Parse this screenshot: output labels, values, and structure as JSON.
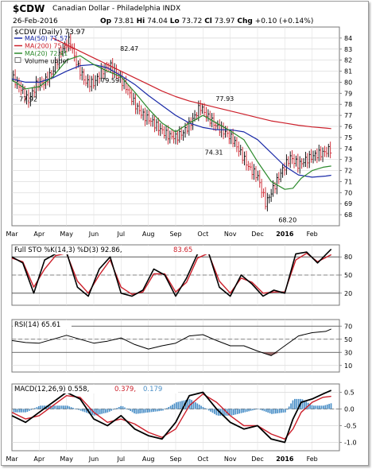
{
  "header": {
    "symbol": "$CDW",
    "name": "Canadian Dollar - Philadelphia",
    "exchange": "INDX",
    "date": "26-Feb-2016",
    "open_label": "Op",
    "open": "73.81",
    "high_label": "Hi",
    "high": "74.04",
    "low_label": "Lo",
    "low": "73.72",
    "close_label": "Cl",
    "close": "73.97",
    "change_label": "Chg",
    "change": "+0.10 (+0.14%)"
  },
  "colors": {
    "ma50": "#1a2aa8",
    "ma200": "#cc1f2a",
    "ma20": "#2c8a2c",
    "price": "#000000",
    "down_bar": "#cc1f2a",
    "sto_k": "#000000",
    "sto_d": "#cc1f2a",
    "macd": "#000000",
    "signal": "#cc1f2a",
    "histogram": "#4a8fc7",
    "rsi_fill": "#9b6b6b"
  },
  "chart_data": [
    {
      "type": "line",
      "title": "$CDW (Daily) 73.97",
      "legend": [
        {
          "label": "MA(50) 71.57",
          "color": "#1a2aa8"
        },
        {
          "label": "MA(200) 75.80",
          "color": "#cc1f2a"
        },
        {
          "label": "MA(20) 72.41",
          "color": "#2c8a2c"
        },
        {
          "label": "Volume undef",
          "color": "#000000"
        }
      ],
      "legend_position": "top-left",
      "x_ticks": [
        "Mar",
        "Apr",
        "May",
        "Jun",
        "Jul",
        "Aug",
        "Sep",
        "Oct",
        "Nov",
        "Dec",
        "2016",
        "Feb"
      ],
      "ylim": [
        67,
        85
      ],
      "y_ticks": [
        68,
        69,
        70,
        71,
        72,
        73,
        74,
        75,
        76,
        77,
        78,
        79,
        80,
        81,
        82,
        83,
        84
      ],
      "annotations": [
        {
          "text": "82.47",
          "x": 4.3,
          "y": 82.47
        },
        {
          "text": "77.92",
          "x": 0.6,
          "y": 77.92
        },
        {
          "text": "79.59",
          "x": 3.6,
          "y": 79.59
        },
        {
          "text": "77.93",
          "x": 7.8,
          "y": 77.93
        },
        {
          "text": "74.31",
          "x": 7.4,
          "y": 74.31
        },
        {
          "text": "68.20",
          "x": 10.1,
          "y": 68.2
        }
      ],
      "series": [
        {
          "name": "$CDW",
          "x": [
            0,
            0.3,
            0.6,
            0.9,
            1.2,
            1.5,
            1.8,
            2.1,
            2.4,
            2.7,
            3.0,
            3.3,
            3.6,
            3.9,
            4.2,
            4.5,
            4.8,
            5.1,
            5.4,
            5.7,
            6.0,
            6.3,
            6.6,
            6.9,
            7.2,
            7.5,
            7.8,
            8.1,
            8.4,
            8.7,
            9.0,
            9.3,
            9.6,
            9.9,
            10.2,
            10.5,
            10.8,
            11.1,
            11.4,
            11.7
          ],
          "values": [
            80.5,
            79.5,
            78.3,
            79.8,
            80.0,
            81.0,
            82.8,
            83.8,
            81.5,
            80.0,
            79.9,
            81.0,
            81.5,
            80.5,
            79.5,
            78.0,
            77.0,
            76.5,
            75.8,
            75.2,
            75.0,
            75.5,
            76.5,
            77.8,
            76.8,
            76.0,
            75.5,
            74.8,
            73.5,
            72.2,
            71.5,
            69.0,
            70.5,
            72.0,
            73.2,
            72.5,
            73.0,
            73.4,
            73.6,
            73.97
          ]
        },
        {
          "name": "MA(50)",
          "x": [
            0,
            0.5,
            1.0,
            1.5,
            2.0,
            2.5,
            3.0,
            3.5,
            4.0,
            4.5,
            5.0,
            5.5,
            6.0,
            6.5,
            7.0,
            7.5,
            8.0,
            8.5,
            9.0,
            9.5,
            10.0,
            10.5,
            11.0,
            11.5,
            11.7
          ],
          "values": [
            80.3,
            80.0,
            80.0,
            80.4,
            81.0,
            81.5,
            81.6,
            81.3,
            80.6,
            79.8,
            78.8,
            77.9,
            77.0,
            76.3,
            75.9,
            75.7,
            75.7,
            75.5,
            74.8,
            73.6,
            72.4,
            71.6,
            71.4,
            71.5,
            71.57
          ]
        },
        {
          "name": "MA(200)",
          "x": [
            1.5,
            2.0,
            2.5,
            3.0,
            3.5,
            4.0,
            4.5,
            5.0,
            5.5,
            6.0,
            6.5,
            7.0,
            7.5,
            8.0,
            8.5,
            9.0,
            9.5,
            10.0,
            10.5,
            11.0,
            11.5,
            11.7
          ],
          "values": [
            84.0,
            83.4,
            82.8,
            82.2,
            81.6,
            81.0,
            80.4,
            79.8,
            79.2,
            78.7,
            78.3,
            78.0,
            77.7,
            77.4,
            77.1,
            76.8,
            76.5,
            76.3,
            76.1,
            75.95,
            75.85,
            75.8
          ]
        },
        {
          "name": "MA(20)",
          "x": [
            0,
            0.5,
            1.0,
            1.5,
            2.0,
            2.5,
            3.0,
            3.5,
            4.0,
            4.5,
            5.0,
            5.5,
            6.0,
            6.5,
            7.0,
            7.5,
            8.0,
            8.5,
            9.0,
            9.5,
            10.0,
            10.3,
            10.6,
            11.0,
            11.4,
            11.7
          ],
          "values": [
            80.2,
            79.4,
            79.6,
            80.5,
            82.0,
            82.4,
            81.6,
            81.0,
            80.5,
            79.1,
            77.6,
            76.3,
            75.5,
            76.3,
            77.0,
            76.3,
            75.6,
            74.8,
            72.8,
            71.0,
            70.3,
            70.4,
            71.3,
            72.0,
            72.3,
            72.41
          ]
        }
      ]
    },
    {
      "type": "line",
      "title": "Full STO %K(14,3) %D(3) 92.86, 83.65",
      "legend": [
        {
          "label": "Full STO %K(14,3) %D(3) 92.86,",
          "color": "#000000"
        },
        {
          "label": "83.65",
          "color": "#cc1f2a"
        }
      ],
      "ylim": [
        0,
        100
      ],
      "y_ticks": [
        20,
        50,
        80
      ],
      "series": [
        {
          "name": "%K(14,3)",
          "x": [
            0,
            0.4,
            0.8,
            1.2,
            1.6,
            2.0,
            2.4,
            2.8,
            3.2,
            3.6,
            4.0,
            4.4,
            4.8,
            5.2,
            5.6,
            6.0,
            6.4,
            6.8,
            7.2,
            7.6,
            8.0,
            8.4,
            8.8,
            9.2,
            9.6,
            10.0,
            10.4,
            10.8,
            11.2,
            11.7
          ],
          "values": [
            80,
            70,
            20,
            75,
            85,
            88,
            30,
            15,
            60,
            80,
            20,
            15,
            25,
            60,
            50,
            15,
            45,
            85,
            88,
            30,
            15,
            50,
            35,
            15,
            25,
            20,
            85,
            88,
            70,
            92.86
          ]
        },
        {
          "name": "%D(3)",
          "x": [
            0,
            0.4,
            0.8,
            1.2,
            1.6,
            2.0,
            2.4,
            2.8,
            3.2,
            3.6,
            4.0,
            4.4,
            4.8,
            5.2,
            5.6,
            6.0,
            6.4,
            6.8,
            7.2,
            7.6,
            8.0,
            8.4,
            8.8,
            9.2,
            9.6,
            10.0,
            10.4,
            10.8,
            11.2,
            11.7
          ],
          "values": [
            78,
            72,
            30,
            60,
            82,
            86,
            40,
            20,
            50,
            75,
            30,
            18,
            22,
            52,
            52,
            22,
            38,
            78,
            86,
            40,
            20,
            45,
            38,
            20,
            22,
            22,
            75,
            86,
            72,
            83.65
          ]
        }
      ]
    },
    {
      "type": "line",
      "title": "RSI(14) 65.61",
      "legend": [
        {
          "label": "RSI(14) 65.61",
          "color": "#000000"
        }
      ],
      "ylim": [
        0,
        80
      ],
      "y_ticks": [
        10,
        30,
        50,
        70
      ],
      "series": [
        {
          "name": "RSI(14)",
          "x": [
            0,
            0.5,
            1.0,
            1.5,
            2.0,
            2.5,
            3.0,
            3.5,
            4.0,
            4.5,
            5.0,
            5.5,
            6.0,
            6.5,
            7.0,
            7.5,
            8.0,
            8.5,
            9.0,
            9.5,
            10.0,
            10.5,
            11.0,
            11.5,
            11.7
          ],
          "values": [
            48,
            45,
            44,
            50,
            56,
            50,
            44,
            47,
            52,
            42,
            35,
            40,
            44,
            55,
            57,
            48,
            40,
            40,
            32,
            25,
            40,
            55,
            60,
            62,
            65.61
          ]
        }
      ]
    },
    {
      "type": "line",
      "title": "MACD(12,26,9) 0.558, 0.379, 0.179",
      "legend": [
        {
          "label": "MACD(12,26,9) 0.558,",
          "color": "#000000"
        },
        {
          "label": "0.379,",
          "color": "#cc1f2a"
        },
        {
          "label": "0.179",
          "color": "#4a8fc7"
        }
      ],
      "ylim": [
        -1.25,
        0.75
      ],
      "y_ticks": [
        -1.0,
        -0.5,
        0.0,
        0.5
      ],
      "x_ticks": [
        "Mar",
        "Apr",
        "May",
        "Jun",
        "Jul",
        "Aug",
        "Sep",
        "Oct",
        "Nov",
        "Dec",
        "2016",
        "Feb"
      ],
      "series": [
        {
          "name": "MACD",
          "x": [
            0,
            0.5,
            1.0,
            1.5,
            2.0,
            2.5,
            3.0,
            3.5,
            4.0,
            4.5,
            5.0,
            5.5,
            6.0,
            6.5,
            7.0,
            7.5,
            8.0,
            8.5,
            9.0,
            9.5,
            10.0,
            10.3,
            10.6,
            11.0,
            11.4,
            11.7
          ],
          "values": [
            -0.2,
            -0.4,
            -0.1,
            0.2,
            0.5,
            0.3,
            -0.3,
            -0.5,
            -0.2,
            -0.6,
            -0.8,
            -0.9,
            -0.4,
            0.4,
            0.5,
            0.0,
            -0.4,
            -0.6,
            -0.5,
            -0.9,
            -1.0,
            -0.3,
            0.2,
            0.3,
            0.45,
            0.558
          ]
        },
        {
          "name": "Signal",
          "x": [
            0,
            0.5,
            1.0,
            1.5,
            2.0,
            2.5,
            3.0,
            3.5,
            4.0,
            4.5,
            5.0,
            5.5,
            6.0,
            6.5,
            7.0,
            7.5,
            8.0,
            8.5,
            9.0,
            9.5,
            10.0,
            10.3,
            10.6,
            11.0,
            11.4,
            11.7
          ],
          "values": [
            -0.1,
            -0.3,
            -0.2,
            0.1,
            0.4,
            0.35,
            -0.1,
            -0.4,
            -0.3,
            -0.45,
            -0.7,
            -0.85,
            -0.6,
            0.1,
            0.45,
            0.2,
            -0.2,
            -0.5,
            -0.5,
            -0.75,
            -0.9,
            -0.6,
            -0.1,
            0.2,
            0.35,
            0.379
          ]
        },
        {
          "name": "Histogram",
          "x": [
            0,
            0.5,
            1.0,
            1.5,
            2.0,
            2.5,
            3.0,
            3.5,
            4.0,
            4.5,
            5.0,
            5.5,
            6.0,
            6.5,
            7.0,
            7.5,
            8.0,
            8.5,
            9.0,
            9.5,
            10.0,
            10.3,
            10.6,
            11.0,
            11.4,
            11.7
          ],
          "values": [
            -0.1,
            -0.1,
            0.1,
            0.1,
            0.1,
            -0.05,
            -0.2,
            -0.1,
            0.1,
            -0.15,
            -0.1,
            -0.05,
            0.2,
            0.3,
            0.05,
            -0.2,
            -0.2,
            -0.1,
            0.0,
            -0.15,
            -0.1,
            0.3,
            0.3,
            0.1,
            0.1,
            0.179
          ]
        }
      ]
    }
  ]
}
